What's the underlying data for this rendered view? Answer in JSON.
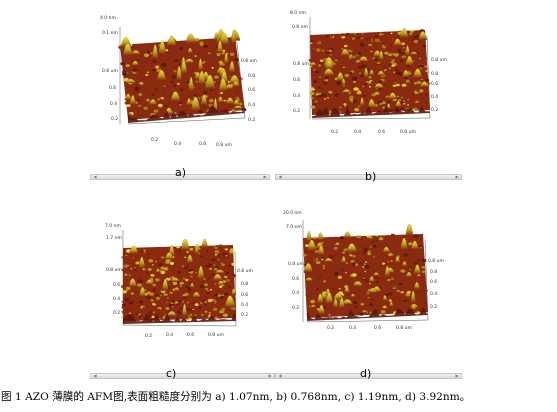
{
  "figure": {
    "caption": "图 1 AZO 薄膜的 AFM图,表面粗糙度分别为 a) 1.07nm, b) 0.768nm, c) 1.19nm, d) 3.92nm。",
    "colors": {
      "peak": "#f2e23a",
      "mid": "#b7a21d",
      "low": "#8a2a10",
      "deep": "#5c1608"
    },
    "panels": [
      {
        "label": "a)",
        "z_max": "4.0 nm",
        "z_axis": [
          "0.1 nm"
        ],
        "y_ticks": [
          "0.8 um",
          "0.6",
          "0.4",
          "0.2"
        ],
        "side_ticks": [
          "0.8 um",
          "0.8",
          "0.6",
          "0.4",
          "0.2"
        ],
        "x_ticks": [
          "0.2",
          "0.4",
          "0.6",
          "0.8 um"
        ]
      },
      {
        "label": "b)",
        "z_max": "8.0 nm",
        "z_axis": [
          "0.8 nm"
        ],
        "y_ticks": [
          "0.8 um",
          "0.6",
          "0.4",
          "0.2"
        ],
        "side_ticks": [
          "0.8 um",
          "0.8",
          "0.6",
          "0.4",
          "0.2"
        ],
        "x_ticks": [
          "0.2",
          "0.4",
          "0.6",
          "0.8 um"
        ]
      },
      {
        "label": "c)",
        "z_max": "7.0 nm",
        "z_axis": [
          "1.7 nm"
        ],
        "y_ticks": [
          "0.8 um",
          "0.6",
          "0.4",
          "0.2"
        ],
        "side_ticks": [
          "0.8 um",
          "0.8",
          "0.6",
          "0.4",
          "0.2"
        ],
        "x_ticks": [
          "0.2",
          "0.4",
          "0.6",
          "0.8 um"
        ]
      },
      {
        "label": "d)",
        "z_max": "20.0 nm",
        "z_axis": [
          "7.0 nm"
        ],
        "y_ticks": [
          "0.8 um",
          "0.6",
          "0.4",
          "0.2"
        ],
        "side_ticks": [
          "0.8 um",
          "0.8",
          "0.6",
          "0.4",
          "0.2"
        ],
        "x_ticks": [
          "0.2",
          "0.4",
          "0.6",
          "0.8 um"
        ]
      }
    ]
  }
}
